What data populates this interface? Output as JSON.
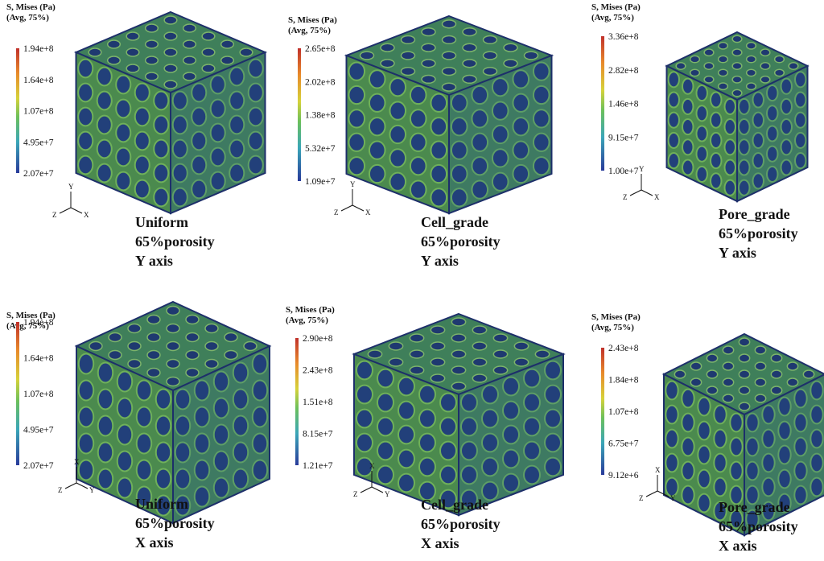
{
  "panels": [
    {
      "legend": {
        "title": [
          "S, Mises (Pa)",
          "(Avg, 75%)"
        ],
        "labels": [
          "1.94e+8",
          "1.64e+8",
          "1.07e+8",
          "4.95e+7",
          "2.07e+7"
        ]
      },
      "triad": {
        "up": "Y",
        "left": "Z",
        "right": "X"
      },
      "caption": [
        "Uniform",
        "65%porosity",
        "Y axis"
      ]
    },
    {
      "legend": {
        "title": [
          "S, Mises (Pa)",
          "(Avg, 75%)"
        ],
        "labels": [
          "2.65e+8",
          "2.02e+8",
          "1.38e+8",
          "5.32e+7",
          "1.09e+7"
        ]
      },
      "triad": {
        "up": "Y",
        "left": "Z",
        "right": "X"
      },
      "caption": [
        "Cell_grade",
        "65%porosity",
        "Y axis"
      ]
    },
    {
      "legend": {
        "title": [
          "S, Mises (Pa)",
          "(Avg, 75%)"
        ],
        "labels": [
          "3.36e+8",
          "2.82e+8",
          "1.46e+8",
          "9.15e+7",
          "1.00e+7"
        ]
      },
      "triad": {
        "up": "Y",
        "left": "Z",
        "right": "X"
      },
      "caption": [
        "Pore_grade",
        "65%porosity",
        "Y axis"
      ]
    },
    {
      "legend": {
        "title": [
          "S, Mises (Pa)",
          "(Avg, 75%)"
        ],
        "labels": [
          "1.94e+8",
          "1.64e+8",
          "1.07e+8",
          "4.95e+7",
          "2.07e+7"
        ]
      },
      "triad": {
        "up": "X",
        "left": "Z",
        "right": "Y"
      },
      "caption": [
        "Uniform",
        "65%porosity",
        "X axis"
      ]
    },
    {
      "legend": {
        "title": [
          "S, Mises (Pa)",
          "(Avg, 75%)"
        ],
        "labels": [
          "2.90e+8",
          "2.43e+8",
          "1.51e+8",
          "8.15e+7",
          "1.21e+7"
        ]
      },
      "triad": {
        "up": "X",
        "left": "Z",
        "right": "Y"
      },
      "caption": [
        "Cell_grade",
        "65%porosity",
        "X axis"
      ]
    },
    {
      "legend": {
        "title": [
          "S, Mises (Pa)",
          "(Avg, 75%)"
        ],
        "labels": [
          "2.43e+8",
          "1.84e+8",
          "1.07e+8",
          "6.75e+7",
          "9.12e+6"
        ]
      },
      "triad": {
        "up": "X",
        "left": "Z",
        "right": "Y"
      },
      "caption": [
        "Pore_grade",
        "65%porosity",
        "X axis"
      ]
    }
  ]
}
